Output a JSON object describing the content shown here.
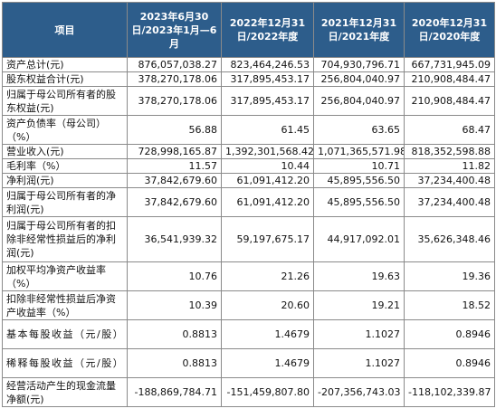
{
  "table": {
    "headers": [
      "项目",
      "2023年6月30日/2023年1月—6月",
      "2022年12月31日/2022年度",
      "2021年12月31日/2021年度",
      "2020年12月31日/2020年度"
    ],
    "rows": [
      {
        "label": "资产总计(元)",
        "values": [
          "876,057,038.27",
          "823,464,246.53",
          "704,930,796.71",
          "667,731,945.09"
        ]
      },
      {
        "label": "股东权益合计(元)",
        "values": [
          "378,270,178.06",
          "317,895,453.17",
          "256,804,040.97",
          "210,908,484.47"
        ]
      },
      {
        "label": "归属于母公司所有者的股东权益(元)",
        "values": [
          "378,270,178.06",
          "317,895,453.17",
          "256,804,040.97",
          "210,908,484.47"
        ]
      },
      {
        "label": "资产负债率（母公司）（%）",
        "values": [
          "56.88",
          "61.45",
          "63.65",
          "68.47"
        ]
      },
      {
        "label": "营业收入(元)",
        "values": [
          "728,998,165.87",
          "1,392,301,568.42",
          "1,071,365,571.98",
          "818,352,598.88"
        ]
      },
      {
        "label": "毛利率（%）",
        "values": [
          "11.57",
          "10.44",
          "10.71",
          "11.82"
        ]
      },
      {
        "label": "净利润(元)",
        "values": [
          "37,842,679.60",
          "61,091,412.20",
          "45,895,556.50",
          "37,234,400.48"
        ]
      },
      {
        "label": "归属于母公司所有者的净利润(元)",
        "values": [
          "37,842,679.60",
          "61,091,412.20",
          "45,895,556.50",
          "37,234,400.48"
        ]
      },
      {
        "label": "归属于母公司所有者的扣除非经常性损益后的净利润(元)",
        "values": [
          "36,541,939.32",
          "59,197,675.17",
          "44,917,092.01",
          "35,626,348.46"
        ]
      },
      {
        "label": "加权平均净资产收益率（%）",
        "values": [
          "10.76",
          "21.26",
          "19.63",
          "19.36"
        ]
      },
      {
        "label": "扣除非经常性损益后净资产收益率（%）",
        "values": [
          "10.39",
          "20.60",
          "19.21",
          "18.52"
        ]
      },
      {
        "label": "基本每股收益（元/股）",
        "values": [
          "0.8813",
          "1.4679",
          "1.1027",
          "0.8946"
        ]
      },
      {
        "label": "稀释每股收益（元/股）",
        "values": [
          "0.8813",
          "1.4679",
          "1.1027",
          "0.8946"
        ]
      },
      {
        "label": "经营活动产生的现金流量净额(元)",
        "values": [
          "-188,869,784.71",
          "-151,459,807.80",
          "-207,356,743.03",
          "-118,102,339.87"
        ]
      }
    ]
  },
  "colors": {
    "header_bg": "#2d5d8b",
    "header_text": "#ffffff",
    "border": "#8a8a8a"
  }
}
